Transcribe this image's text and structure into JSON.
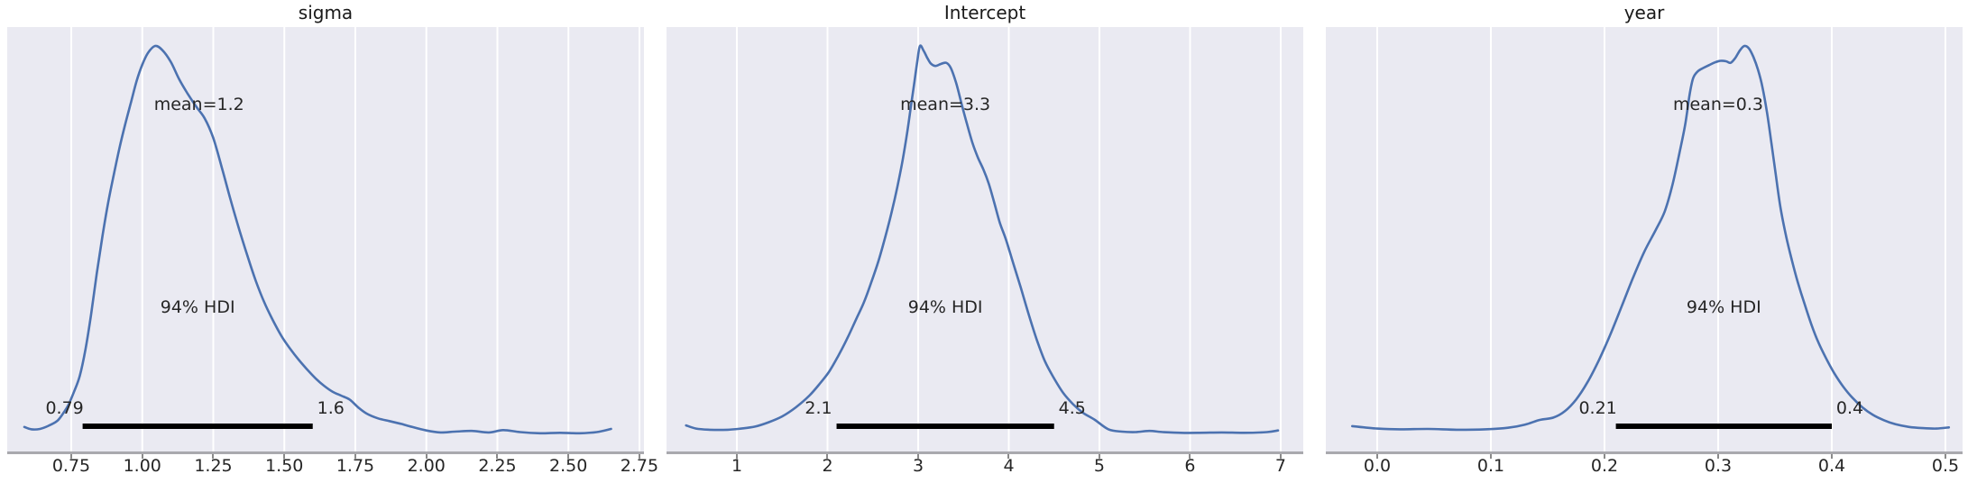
{
  "figure": {
    "type": "posterior-kde-grid",
    "panels": 3
  },
  "style": {
    "curve_color": "#4c72b0",
    "plot_bg": "#eaeaf2",
    "grid_color": "#ffffff",
    "hdi_bar_color": "#000000",
    "spine_color": "#a9a9ae",
    "tick_color": "#8a8a8a",
    "tick_label_color": "#262626",
    "title_color": "#1a1a1a",
    "annotation_color": "#262626",
    "figure_bg": "#ffffff"
  },
  "chart_data": [
    {
      "type": "kde",
      "title": "sigma",
      "mean": 1.2,
      "mean_label": "mean=1.2",
      "hdi_prob": "94%",
      "hdi_label": "94% HDI",
      "hdi": [
        0.79,
        1.6
      ],
      "hdi_lo_label": "0.79",
      "hdi_hi_label": "1.6",
      "xlim": [
        0.5246,
        2.766
      ],
      "x_ticks": [
        0.75,
        1.0,
        1.25,
        1.5,
        1.75,
        2.0,
        2.25,
        2.5,
        2.75
      ],
      "x_tick_labels": [
        "0.75",
        "1.00",
        "1.25",
        "1.50",
        "1.75",
        "2.00",
        "2.25",
        "2.50",
        "2.75"
      ],
      "grid": true,
      "points": [
        [
          0.585,
          0.028
        ],
        [
          0.61,
          0.022
        ],
        [
          0.64,
          0.023
        ],
        [
          0.67,
          0.031
        ],
        [
          0.7,
          0.043
        ],
        [
          0.72,
          0.061
        ],
        [
          0.74,
          0.084
        ],
        [
          0.76,
          0.118
        ],
        [
          0.78,
          0.158
        ],
        [
          0.8,
          0.225
        ],
        [
          0.82,
          0.315
        ],
        [
          0.84,
          0.42
        ],
        [
          0.86,
          0.515
        ],
        [
          0.88,
          0.6
        ],
        [
          0.9,
          0.672
        ],
        [
          0.92,
          0.74
        ],
        [
          0.94,
          0.8
        ],
        [
          0.96,
          0.855
        ],
        [
          0.98,
          0.91
        ],
        [
          1.0,
          0.952
        ],
        [
          1.02,
          0.982
        ],
        [
          1.045,
          1.0
        ],
        [
          1.07,
          0.99
        ],
        [
          1.1,
          0.96
        ],
        [
          1.13,
          0.915
        ],
        [
          1.16,
          0.878
        ],
        [
          1.19,
          0.845
        ],
        [
          1.22,
          0.815
        ],
        [
          1.25,
          0.765
        ],
        [
          1.28,
          0.69
        ],
        [
          1.31,
          0.61
        ],
        [
          1.34,
          0.535
        ],
        [
          1.37,
          0.465
        ],
        [
          1.4,
          0.4
        ],
        [
          1.43,
          0.345
        ],
        [
          1.46,
          0.3
        ],
        [
          1.49,
          0.26
        ],
        [
          1.52,
          0.228
        ],
        [
          1.55,
          0.2
        ],
        [
          1.58,
          0.175
        ],
        [
          1.61,
          0.152
        ],
        [
          1.64,
          0.133
        ],
        [
          1.67,
          0.118
        ],
        [
          1.7,
          0.108
        ],
        [
          1.73,
          0.098
        ],
        [
          1.76,
          0.078
        ],
        [
          1.79,
          0.062
        ],
        [
          1.83,
          0.05
        ],
        [
          1.87,
          0.043
        ],
        [
          1.91,
          0.036
        ],
        [
          1.95,
          0.028
        ],
        [
          2.0,
          0.019
        ],
        [
          2.05,
          0.014
        ],
        [
          2.1,
          0.016
        ],
        [
          2.16,
          0.018
        ],
        [
          2.22,
          0.014
        ],
        [
          2.27,
          0.02
        ],
        [
          2.33,
          0.015
        ],
        [
          2.4,
          0.012
        ],
        [
          2.47,
          0.013
        ],
        [
          2.54,
          0.012
        ],
        [
          2.6,
          0.015
        ],
        [
          2.65,
          0.023
        ]
      ]
    },
    {
      "type": "kde",
      "title": "Intercept",
      "mean": 3.3,
      "mean_label": "mean=3.3",
      "hdi_prob": "94%",
      "hdi_label": "94% HDI",
      "hdi": [
        2.1,
        4.5
      ],
      "hdi_lo_label": "2.1",
      "hdi_hi_label": "4.5",
      "xlim": [
        0.2239,
        7.249
      ],
      "x_ticks": [
        1,
        2,
        3,
        4,
        5,
        6,
        7
      ],
      "x_tick_labels": [
        "1",
        "2",
        "3",
        "4",
        "5",
        "6",
        "7"
      ],
      "grid": true,
      "points": [
        [
          0.44,
          0.032
        ],
        [
          0.55,
          0.024
        ],
        [
          0.7,
          0.021
        ],
        [
          0.9,
          0.021
        ],
        [
          1.05,
          0.024
        ],
        [
          1.2,
          0.029
        ],
        [
          1.35,
          0.04
        ],
        [
          1.5,
          0.055
        ],
        [
          1.65,
          0.078
        ],
        [
          1.8,
          0.108
        ],
        [
          1.92,
          0.14
        ],
        [
          2.02,
          0.17
        ],
        [
          2.12,
          0.21
        ],
        [
          2.22,
          0.255
        ],
        [
          2.32,
          0.305
        ],
        [
          2.4,
          0.345
        ],
        [
          2.48,
          0.395
        ],
        [
          2.56,
          0.45
        ],
        [
          2.64,
          0.515
        ],
        [
          2.71,
          0.578
        ],
        [
          2.77,
          0.64
        ],
        [
          2.83,
          0.71
        ],
        [
          2.88,
          0.78
        ],
        [
          2.92,
          0.845
        ],
        [
          2.96,
          0.91
        ],
        [
          2.99,
          0.96
        ],
        [
          3.02,
          1.0
        ],
        [
          3.06,
          0.988
        ],
        [
          3.1,
          0.97
        ],
        [
          3.14,
          0.955
        ],
        [
          3.19,
          0.949
        ],
        [
          3.25,
          0.954
        ],
        [
          3.31,
          0.957
        ],
        [
          3.36,
          0.944
        ],
        [
          3.42,
          0.905
        ],
        [
          3.48,
          0.852
        ],
        [
          3.54,
          0.8
        ],
        [
          3.6,
          0.752
        ],
        [
          3.66,
          0.715
        ],
        [
          3.72,
          0.685
        ],
        [
          3.78,
          0.648
        ],
        [
          3.84,
          0.6
        ],
        [
          3.9,
          0.55
        ],
        [
          3.97,
          0.505
        ],
        [
          4.05,
          0.445
        ],
        [
          4.13,
          0.385
        ],
        [
          4.22,
          0.315
        ],
        [
          4.31,
          0.25
        ],
        [
          4.4,
          0.195
        ],
        [
          4.5,
          0.152
        ],
        [
          4.6,
          0.115
        ],
        [
          4.71,
          0.086
        ],
        [
          4.82,
          0.064
        ],
        [
          4.95,
          0.046
        ],
        [
          5.1,
          0.022
        ],
        [
          5.25,
          0.016
        ],
        [
          5.4,
          0.015
        ],
        [
          5.55,
          0.018
        ],
        [
          5.7,
          0.015
        ],
        [
          5.9,
          0.013
        ],
        [
          6.1,
          0.013
        ],
        [
          6.35,
          0.014
        ],
        [
          6.6,
          0.013
        ],
        [
          6.85,
          0.015
        ],
        [
          6.97,
          0.019
        ]
      ]
    },
    {
      "type": "kde",
      "title": "year",
      "mean": 0.3,
      "mean_label": "mean=0.3",
      "hdi_prob": "94%",
      "hdi_label": "94% HDI",
      "hdi": [
        0.21,
        0.4
      ],
      "hdi_lo_label": "0.21",
      "hdi_hi_label": "0.4",
      "xlim": [
        -0.04524,
        0.51508
      ],
      "x_ticks": [
        0.0,
        0.1,
        0.2,
        0.3,
        0.4,
        0.5
      ],
      "x_tick_labels": [
        "0.0",
        "0.1",
        "0.2",
        "0.3",
        "0.4",
        "0.5"
      ],
      "grid": true,
      "points": [
        [
          -0.022,
          0.03
        ],
        [
          0.0,
          0.024
        ],
        [
          0.02,
          0.022
        ],
        [
          0.045,
          0.023
        ],
        [
          0.07,
          0.021
        ],
        [
          0.095,
          0.022
        ],
        [
          0.115,
          0.026
        ],
        [
          0.13,
          0.034
        ],
        [
          0.143,
          0.046
        ],
        [
          0.155,
          0.052
        ],
        [
          0.165,
          0.068
        ],
        [
          0.175,
          0.098
        ],
        [
          0.185,
          0.142
        ],
        [
          0.195,
          0.198
        ],
        [
          0.205,
          0.263
        ],
        [
          0.215,
          0.335
        ],
        [
          0.225,
          0.408
        ],
        [
          0.235,
          0.475
        ],
        [
          0.245,
          0.53
        ],
        [
          0.253,
          0.578
        ],
        [
          0.26,
          0.648
        ],
        [
          0.266,
          0.728
        ],
        [
          0.271,
          0.8
        ],
        [
          0.275,
          0.878
        ],
        [
          0.278,
          0.918
        ],
        [
          0.282,
          0.935
        ],
        [
          0.287,
          0.944
        ],
        [
          0.292,
          0.951
        ],
        [
          0.297,
          0.958
        ],
        [
          0.302,
          0.962
        ],
        [
          0.307,
          0.961
        ],
        [
          0.311,
          0.957
        ],
        [
          0.315,
          0.969
        ],
        [
          0.319,
          0.988
        ],
        [
          0.323,
          1.0
        ],
        [
          0.327,
          0.994
        ],
        [
          0.331,
          0.972
        ],
        [
          0.335,
          0.94
        ],
        [
          0.339,
          0.895
        ],
        [
          0.343,
          0.83
        ],
        [
          0.347,
          0.75
        ],
        [
          0.351,
          0.665
        ],
        [
          0.355,
          0.585
        ],
        [
          0.36,
          0.512
        ],
        [
          0.365,
          0.452
        ],
        [
          0.37,
          0.398
        ],
        [
          0.376,
          0.342
        ],
        [
          0.382,
          0.29
        ],
        [
          0.388,
          0.245
        ],
        [
          0.395,
          0.203
        ],
        [
          0.402,
          0.166
        ],
        [
          0.41,
          0.131
        ],
        [
          0.418,
          0.103
        ],
        [
          0.427,
          0.078
        ],
        [
          0.436,
          0.059
        ],
        [
          0.446,
          0.045
        ],
        [
          0.456,
          0.035
        ],
        [
          0.468,
          0.028
        ],
        [
          0.48,
          0.025
        ],
        [
          0.492,
          0.024
        ],
        [
          0.503,
          0.027
        ]
      ]
    }
  ]
}
